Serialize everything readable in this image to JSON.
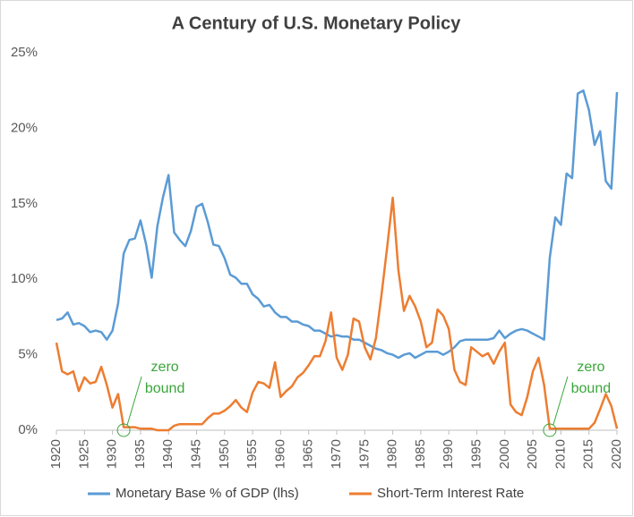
{
  "chart_data": {
    "type": "line",
    "title": "A Century of U.S. Monetary Policy",
    "x": [
      1920,
      1921,
      1922,
      1923,
      1924,
      1925,
      1926,
      1927,
      1928,
      1929,
      1930,
      1931,
      1932,
      1933,
      1934,
      1935,
      1936,
      1937,
      1938,
      1939,
      1940,
      1941,
      1942,
      1943,
      1944,
      1945,
      1946,
      1947,
      1948,
      1949,
      1950,
      1951,
      1952,
      1953,
      1954,
      1955,
      1956,
      1957,
      1958,
      1959,
      1960,
      1961,
      1962,
      1963,
      1964,
      1965,
      1966,
      1967,
      1968,
      1969,
      1970,
      1971,
      1972,
      1973,
      1974,
      1975,
      1976,
      1977,
      1978,
      1979,
      1980,
      1981,
      1982,
      1983,
      1984,
      1985,
      1986,
      1987,
      1988,
      1989,
      1990,
      1991,
      1992,
      1993,
      1994,
      1995,
      1996,
      1997,
      1998,
      1999,
      2000,
      2001,
      2002,
      2003,
      2004,
      2005,
      2006,
      2007,
      2008,
      2009,
      2010,
      2011,
      2012,
      2013,
      2014,
      2015,
      2016,
      2017,
      2018,
      2019,
      2020
    ],
    "series": [
      {
        "name": "Monetary Base % of GDP (lhs)",
        "color": "#5b9bd5",
        "values": [
          7.3,
          7.4,
          7.8,
          7.0,
          7.1,
          6.9,
          6.5,
          6.6,
          6.5,
          6.0,
          6.6,
          8.4,
          11.7,
          12.6,
          12.7,
          13.9,
          12.3,
          10.1,
          13.5,
          15.4,
          16.9,
          13.1,
          12.6,
          12.2,
          13.2,
          14.8,
          15.0,
          13.8,
          12.3,
          12.2,
          11.4,
          10.3,
          10.1,
          9.7,
          9.7,
          9.0,
          8.7,
          8.2,
          8.3,
          7.8,
          7.5,
          7.5,
          7.2,
          7.2,
          7.0,
          6.9,
          6.6,
          6.6,
          6.4,
          6.2,
          6.3,
          6.2,
          6.2,
          6.0,
          6.0,
          5.8,
          5.6,
          5.4,
          5.3,
          5.1,
          5.0,
          4.8,
          5.0,
          5.1,
          4.8,
          5.0,
          5.2,
          5.2,
          5.2,
          5.0,
          5.2,
          5.5,
          5.9,
          6.0,
          6.0,
          6.0,
          6.0,
          6.0,
          6.1,
          6.6,
          6.1,
          6.4,
          6.6,
          6.7,
          6.6,
          6.4,
          6.2,
          6.0,
          11.4,
          14.1,
          13.6,
          17.0,
          16.7,
          22.3,
          22.5,
          21.2,
          18.9,
          19.8,
          16.5,
          16.0,
          22.4
        ]
      },
      {
        "name": "Short-Term Interest Rate",
        "color": "#ed7d31",
        "values": [
          5.8,
          3.9,
          3.7,
          3.9,
          2.6,
          3.5,
          3.1,
          3.2,
          4.2,
          3.0,
          1.5,
          2.4,
          0.2,
          0.2,
          0.2,
          0.1,
          0.1,
          0.1,
          0.0,
          0.0,
          0.0,
          0.3,
          0.4,
          0.4,
          0.4,
          0.4,
          0.4,
          0.8,
          1.1,
          1.1,
          1.3,
          1.6,
          2.0,
          1.5,
          1.2,
          2.5,
          3.2,
          3.1,
          2.8,
          4.5,
          2.2,
          2.6,
          2.9,
          3.5,
          3.8,
          4.3,
          4.9,
          4.9,
          5.9,
          7.8,
          4.8,
          4.0,
          5.0,
          7.4,
          7.2,
          5.5,
          4.7,
          6.1,
          9.0,
          12.1,
          15.4,
          10.6,
          7.9,
          8.9,
          8.2,
          7.2,
          5.5,
          5.8,
          8.0,
          7.6,
          6.7,
          4.0,
          3.2,
          3.0,
          5.5,
          5.2,
          4.9,
          5.1,
          4.4,
          5.2,
          5.8,
          1.7,
          1.2,
          1.0,
          2.2,
          3.9,
          4.8,
          3.0,
          0.1,
          0.1,
          0.1,
          0.1,
          0.1,
          0.1,
          0.1,
          0.1,
          0.5,
          1.4,
          2.4,
          1.6,
          0.1
        ]
      }
    ],
    "xlim": [
      1920,
      2020
    ],
    "xticks": [
      1920,
      1925,
      1930,
      1935,
      1940,
      1945,
      1950,
      1955,
      1960,
      1965,
      1970,
      1975,
      1980,
      1985,
      1990,
      1995,
      2000,
      2005,
      2010,
      2015,
      2020
    ],
    "ylim": [
      0,
      25
    ],
    "yticks": [
      {
        "value": 0,
        "label": "0%"
      },
      {
        "value": 5,
        "label": "5%"
      },
      {
        "value": 10,
        "label": "10%"
      },
      {
        "value": 15,
        "label": "15%"
      },
      {
        "value": 20,
        "label": "20%"
      },
      {
        "value": 25,
        "label": "25%"
      }
    ],
    "grid": false,
    "legend": "bottom",
    "annotations": [
      {
        "lines": [
          "zero",
          "bound"
        ],
        "x": 1932,
        "y": 0,
        "color": "#3aa63a"
      },
      {
        "lines": [
          "zero",
          "bound"
        ],
        "x": 2008,
        "y": 0,
        "color": "#3aa63a"
      }
    ]
  }
}
